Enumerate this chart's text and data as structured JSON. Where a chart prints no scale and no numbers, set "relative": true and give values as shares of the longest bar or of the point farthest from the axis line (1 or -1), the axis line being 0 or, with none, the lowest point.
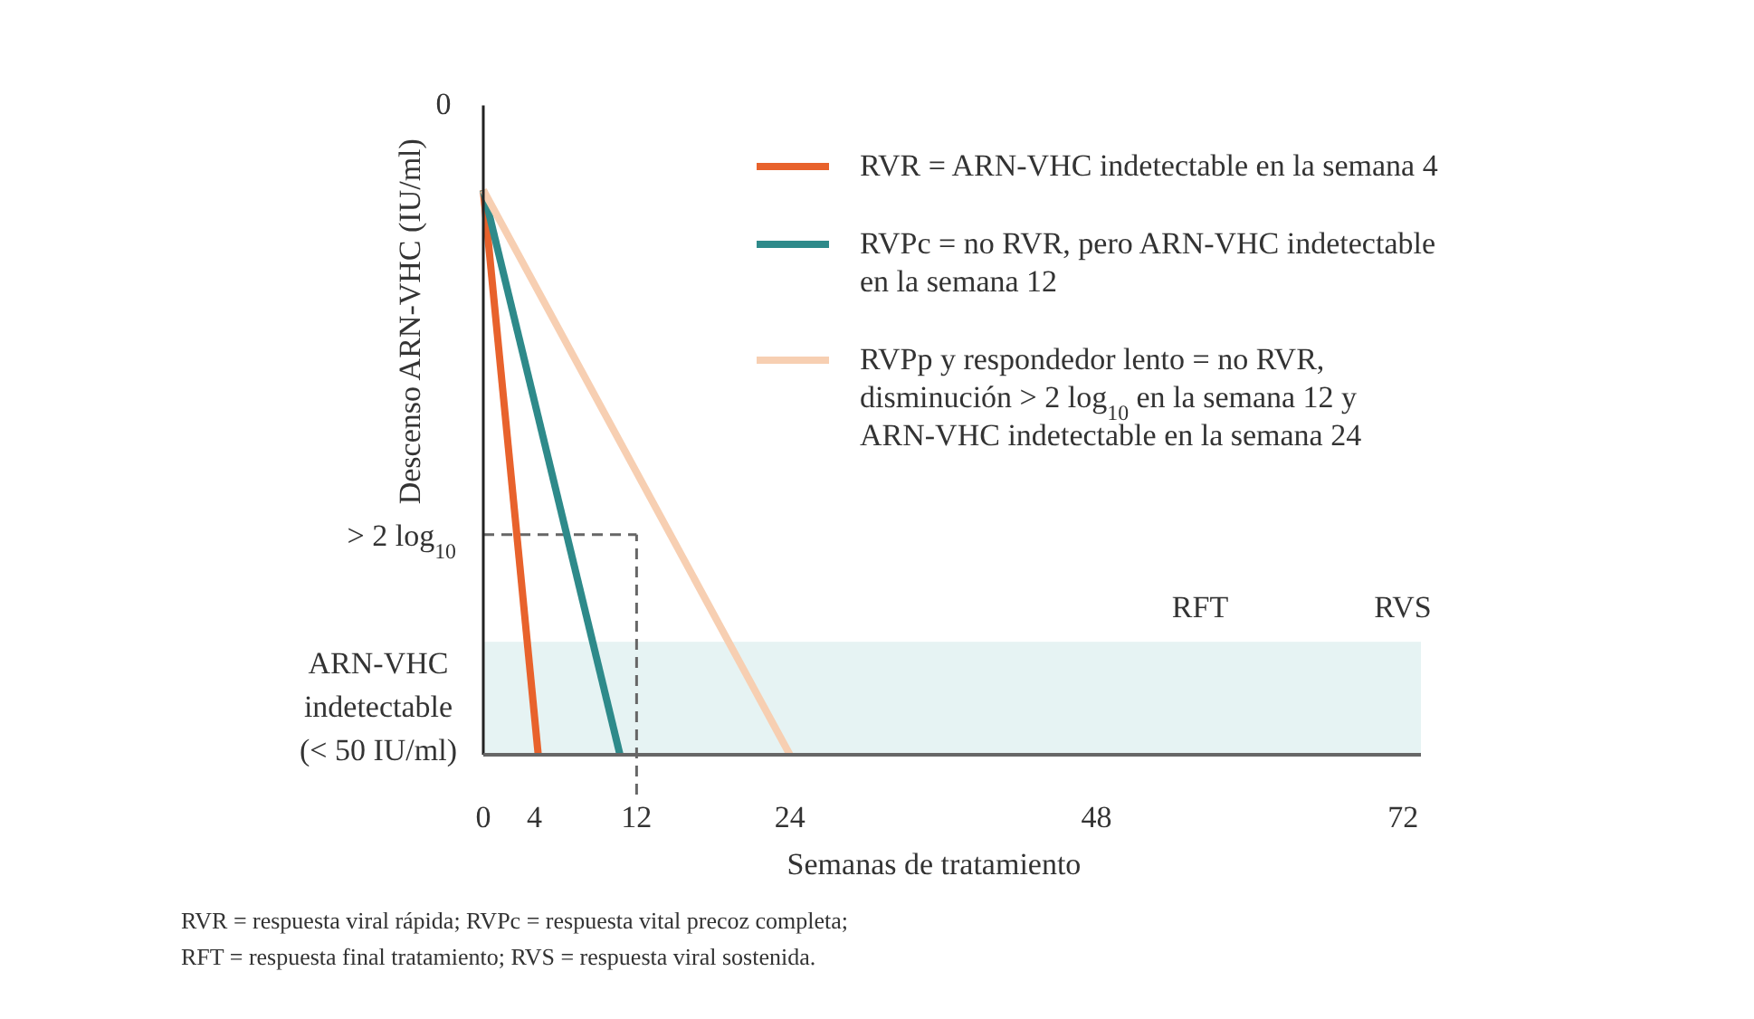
{
  "chart_data": {
    "type": "line",
    "relative": true,
    "xlabel": "Semanas de tratamiento",
    "ylabel": "Descenso ARN-VHC (IU/ml)",
    "xlim": [
      0,
      73.4
    ],
    "xticks": [
      0,
      4,
      12,
      24,
      48,
      72
    ],
    "series": [
      {
        "name": "RVR = ARN-VHC indetectable en la semana 4",
        "color": "#e8622c",
        "x": [
          0,
          4.3
        ],
        "values": [
          1,
          0
        ]
      },
      {
        "name": "RVPc = no RVR, pero ARN-VHC indetectable en la semana 12",
        "color": "#2e8a8a",
        "x": [
          0,
          10.7
        ],
        "values": [
          1,
          0
        ]
      },
      {
        "name": "RVPp y respondedor lento = no RVR, disminución > 2 log$_{10}$ en la semana 12 y ARN-VHC indetectable en la semana 24",
        "color": "#f7cfb2",
        "x": [
          0,
          24
        ],
        "values": [
          1,
          0
        ]
      }
    ],
    "ref_lines": [
      {
        "axis": "y",
        "value": 0.39,
        "label": "> 2 log$_{10}$",
        "color": "#666666",
        "line_style": "dashed"
      },
      {
        "axis": "x",
        "value": 12,
        "color": "#666666",
        "line_style": "dashed"
      }
    ],
    "bands": [
      {
        "axis": "y",
        "from": 0,
        "to": 0.2,
        "label": "ARN-VHC indetectable (< 50 IU/ml)",
        "color": "#e6f3f3"
      }
    ],
    "annotations": [
      "0",
      "RFT",
      "RVS",
      "RVR = respuesta viral rápida; RVPc = respuesta vital precoz completa;",
      "RFT = respuesta final tratamiento; RVS = respuesta viral sostenida."
    ],
    "legend": "top right",
    "line_style": "solid",
    "marker": "none",
    "grid": false
  }
}
